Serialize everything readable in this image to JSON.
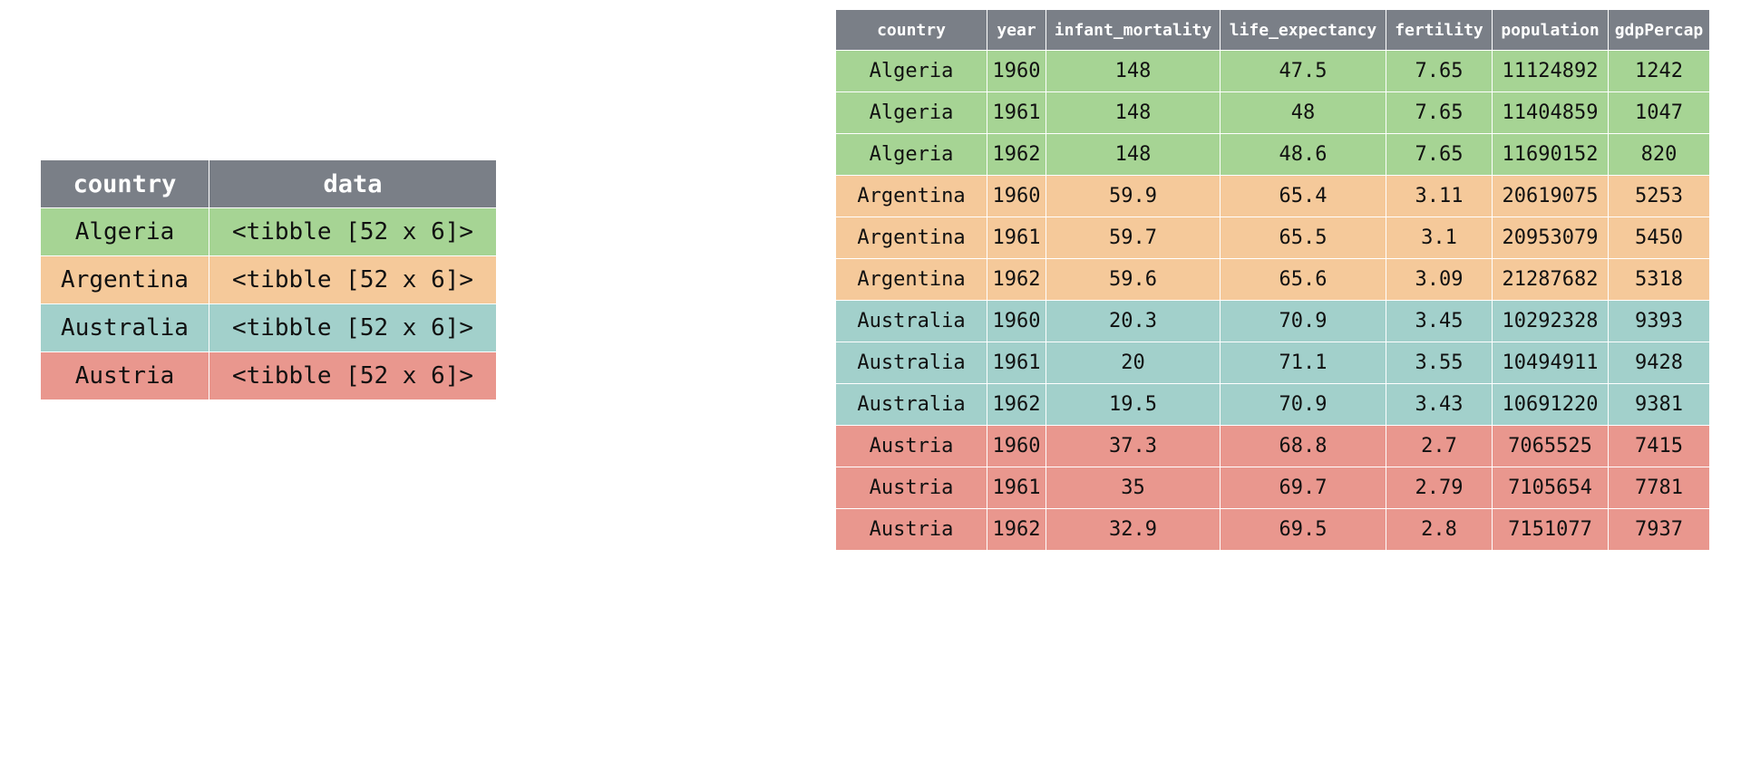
{
  "colors": {
    "header": "#7a7f87",
    "Algeria": "#a6d494",
    "Argentina": "#f5c99a",
    "Australia": "#a2d0cb",
    "Austria": "#e9978e"
  },
  "nested": {
    "columns": [
      "country",
      "data"
    ],
    "rows": [
      {
        "country": "Algeria",
        "data": "<tibble [52 x 6]>"
      },
      {
        "country": "Argentina",
        "data": "<tibble [52 x 6]>"
      },
      {
        "country": "Australia",
        "data": "<tibble [52 x 6]>"
      },
      {
        "country": "Austria",
        "data": "<tibble [52 x 6]>"
      }
    ]
  },
  "unnested": {
    "columns": [
      "country",
      "year",
      "infant_mortality",
      "life_expectancy",
      "fertility",
      "population",
      "gdpPercap"
    ],
    "rows": [
      [
        "Algeria",
        "1960",
        "148",
        "47.5",
        "7.65",
        "11124892",
        "1242"
      ],
      [
        "Algeria",
        "1961",
        "148",
        "48",
        "7.65",
        "11404859",
        "1047"
      ],
      [
        "Algeria",
        "1962",
        "148",
        "48.6",
        "7.65",
        "11690152",
        "820"
      ],
      [
        "Argentina",
        "1960",
        "59.9",
        "65.4",
        "3.11",
        "20619075",
        "5253"
      ],
      [
        "Argentina",
        "1961",
        "59.7",
        "65.5",
        "3.1",
        "20953079",
        "5450"
      ],
      [
        "Argentina",
        "1962",
        "59.6",
        "65.6",
        "3.09",
        "21287682",
        "5318"
      ],
      [
        "Australia",
        "1960",
        "20.3",
        "70.9",
        "3.45",
        "10292328",
        "9393"
      ],
      [
        "Australia",
        "1961",
        "20",
        "71.1",
        "3.55",
        "10494911",
        "9428"
      ],
      [
        "Australia",
        "1962",
        "19.5",
        "70.9",
        "3.43",
        "10691220",
        "9381"
      ],
      [
        "Austria",
        "1960",
        "37.3",
        "68.8",
        "2.7",
        "7065525",
        "7415"
      ],
      [
        "Austria",
        "1961",
        "35",
        "69.7",
        "2.79",
        "7105654",
        "7781"
      ],
      [
        "Austria",
        "1962",
        "32.9",
        "69.5",
        "2.8",
        "7151077",
        "7937"
      ]
    ]
  }
}
